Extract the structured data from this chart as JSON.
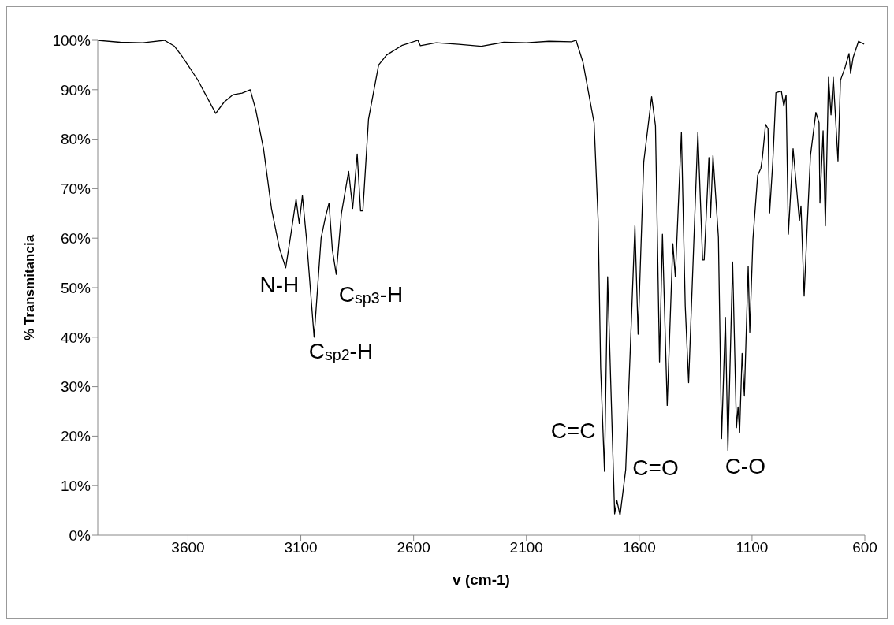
{
  "chart_data": {
    "type": "line",
    "xlabel": "v (cm-1)",
    "ylabel": "% Transmitancia",
    "xlim": [
      4000,
      600
    ],
    "xticks": [
      3600,
      3100,
      2600,
      2100,
      1600,
      1100,
      600
    ],
    "ylim": [
      0,
      100
    ],
    "yticks": [
      {
        "value": 0,
        "label": "0%"
      },
      {
        "value": 10,
        "label": "10%"
      },
      {
        "value": 20,
        "label": "20%"
      },
      {
        "value": 30,
        "label": "30%"
      },
      {
        "value": 40,
        "label": "40%"
      },
      {
        "value": 50,
        "label": "50%"
      },
      {
        "value": 60,
        "label": "60%"
      },
      {
        "value": 70,
        "label": "70%"
      },
      {
        "value": 80,
        "label": "80%"
      },
      {
        "value": 90,
        "label": "90%"
      },
      {
        "value": 100,
        "label": "100%"
      }
    ],
    "grid": false,
    "legend": false,
    "marker": "none",
    "line_style": "solid",
    "series": [
      {
        "color": "#000000",
        "x": [
          4000,
          3900,
          3800,
          3704,
          3660,
          3627,
          3557,
          3510,
          3477,
          3440,
          3400,
          3360,
          3324,
          3300,
          3265,
          3230,
          3195,
          3167,
          3140,
          3121,
          3107,
          3093,
          3075,
          3041,
          3010,
          2992,
          2975,
          2960,
          2943,
          2920,
          2888,
          2870,
          2850,
          2835,
          2825,
          2800,
          2755,
          2720,
          2650,
          2581,
          2570,
          2500,
          2400,
          2300,
          2200,
          2100,
          2000,
          1900,
          1880,
          1849,
          1800,
          1782,
          1771,
          1754,
          1740,
          1726,
          1709,
          1699,
          1685,
          1660,
          1640,
          1619,
          1605,
          1580,
          1545,
          1528,
          1510,
          1497,
          1476,
          1451,
          1440,
          1413,
          1396,
          1381,
          1340,
          1319,
          1312,
          1291,
          1284,
          1273,
          1249,
          1235,
          1218,
          1207,
          1186,
          1169,
          1162,
          1155,
          1144,
          1134,
          1117,
          1110,
          1096,
          1075,
          1061,
          1054,
          1040,
          1029,
          1022,
          1008,
          994,
          970,
          959,
          949,
          939,
          918,
          890,
          883,
          869,
          855,
          841,
          817,
          803,
          799,
          789,
          785,
          775,
          761,
          750,
          740,
          719,
          708,
          687,
          670,
          663,
          652,
          628,
          603
        ],
        "values": [
          100,
          99.6,
          99.5,
          100,
          98.8,
          96.8,
          92,
          88,
          85.2,
          87.5,
          89,
          89.3,
          90,
          86,
          78,
          66,
          58,
          54,
          62,
          67.9,
          63,
          68.6,
          60,
          40,
          60,
          64,
          67.1,
          57.6,
          52.7,
          65,
          73.5,
          66,
          77,
          65.5,
          65.5,
          84,
          95,
          97,
          99,
          100,
          98.9,
          99.5,
          99.2,
          98.8,
          99.6,
          99.5,
          99.8,
          99.7,
          100,
          95.5,
          83.3,
          63.5,
          33.8,
          12.9,
          52.2,
          30.5,
          4.3,
          7,
          4,
          13.2,
          37,
          62.5,
          40.6,
          75.4,
          88.6,
          82.7,
          35,
          60.8,
          26.2,
          58.9,
          52.2,
          81.4,
          46.3,
          30.8,
          81.4,
          55.6,
          55.6,
          76.3,
          64.1,
          76.7,
          60.2,
          19.5,
          44,
          17.1,
          55.2,
          21.7,
          25.9,
          20.8,
          36.7,
          28.1,
          54.3,
          41,
          59.8,
          72.7,
          74.1,
          76.3,
          83,
          82.1,
          65.1,
          75.4,
          89.4,
          89.7,
          86.7,
          88.9,
          60.8,
          78.1,
          63.5,
          66.5,
          48.3,
          62.9,
          76.7,
          85.4,
          83.3,
          67.1,
          77.5,
          81.7,
          62.5,
          92.5,
          84.9,
          92.5,
          75.6,
          91.9,
          94.6,
          97.3,
          93.3,
          96.5,
          99.8,
          99.2
        ]
      }
    ],
    "annotations": [
      {
        "text": "N-H",
        "x": 3167,
        "y": 54
      },
      {
        "text": "C$_{sp2}$-H",
        "x": 3041,
        "y": 40
      },
      {
        "text": "C$_{sp3}$-H",
        "x": 2943,
        "y": 52.7
      },
      {
        "text": "C=C",
        "x": 1760,
        "y": 20
      },
      {
        "text": "C=O",
        "x": 1685,
        "y": 4
      },
      {
        "text": "C-O",
        "x": 1207,
        "y": 17.1
      }
    ]
  }
}
